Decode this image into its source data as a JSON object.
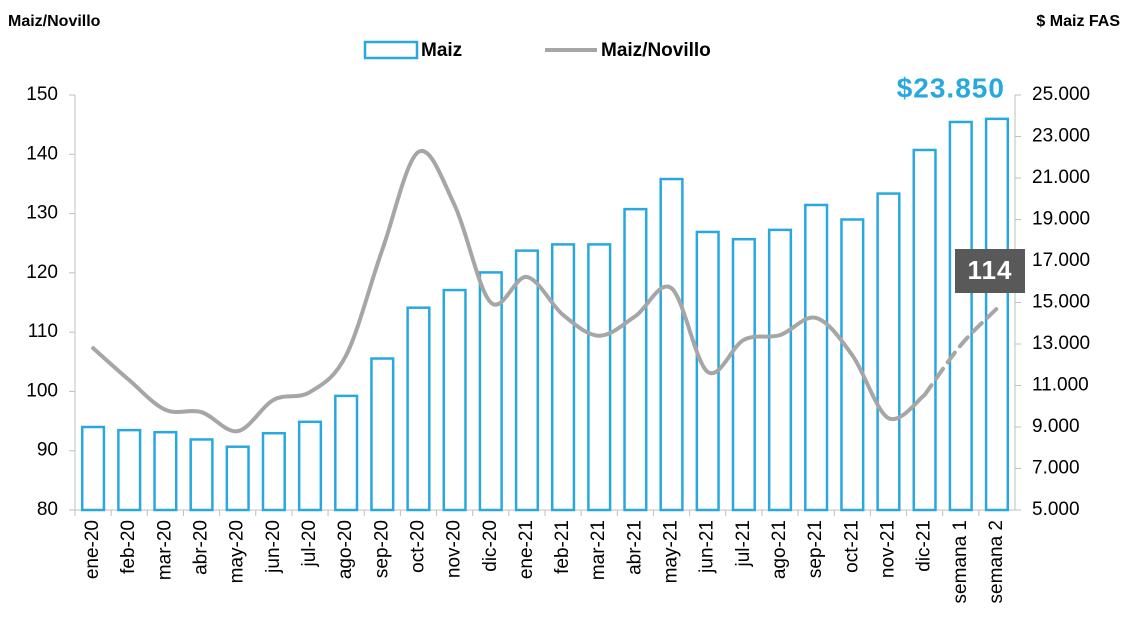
{
  "chart_data": {
    "type": "bar-line",
    "y_axis_label": "Maiz/Novillo",
    "y2_axis_label": "$ Maiz FAS",
    "categories": [
      "ene-20",
      "feb-20",
      "mar-20",
      "abr-20",
      "may-20",
      "jun-20",
      "jul-20",
      "ago-20",
      "sep-20",
      "oct-20",
      "nov-20",
      "dic-20",
      "ene-21",
      "feb-21",
      "mar-21",
      "abr-21",
      "may-21",
      "jun-21",
      "jul-21",
      "ago-21",
      "sep-21",
      "oct-21",
      "nov-21",
      "dic-21",
      "semana 1",
      "semana 2"
    ],
    "series": [
      {
        "name": "Maiz",
        "type": "bar",
        "axis": "y2",
        "color": "#29a8df",
        "values": [
          9000,
          8850,
          8750,
          8400,
          8050,
          8700,
          9250,
          10500,
          12300,
          14750,
          15600,
          16450,
          17500,
          17800,
          17800,
          19500,
          20950,
          18400,
          18050,
          18500,
          19700,
          19000,
          20250,
          22350,
          23700,
          23850
        ]
      },
      {
        "name": "Maiz/Novillo",
        "type": "line",
        "axis": "y",
        "color": "#a6a6a6",
        "values": [
          107.3,
          101.9,
          96.9,
          96.5,
          93.3,
          98.6,
          99.9,
          106.1,
          123.9,
          140.4,
          131.4,
          115.0,
          119.3,
          112.9,
          109.4,
          112.7,
          117.4,
          103.3,
          108.7,
          109.5,
          112.4,
          106.1,
          95.5,
          99.4,
          107.8,
          114
        ]
      }
    ],
    "annotations": [
      "$23.850",
      "114"
    ],
    "ylim": [
      80,
      150
    ],
    "yticks": [
      80,
      90,
      100,
      110,
      120,
      130,
      140,
      150
    ],
    "y2lim": [
      5000,
      25000
    ],
    "y2ticks": [
      {
        "value": 5000,
        "label": "5.000"
      },
      {
        "value": 7000,
        "label": "7.000"
      },
      {
        "value": 9000,
        "label": "9.000"
      },
      {
        "value": 11000,
        "label": "11.000"
      },
      {
        "value": 13000,
        "label": "13.000"
      },
      {
        "value": 15000,
        "label": "15.000"
      },
      {
        "value": 17000,
        "label": "17.000"
      },
      {
        "value": 19000,
        "label": "19.000"
      },
      {
        "value": 21000,
        "label": "21.000"
      },
      {
        "value": 23000,
        "label": "23.000"
      },
      {
        "value": 25000,
        "label": "25.000"
      }
    ],
    "legend": "top"
  }
}
